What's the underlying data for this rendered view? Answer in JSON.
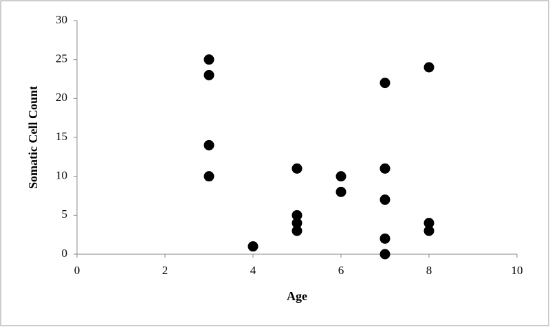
{
  "chart_data": {
    "type": "scatter",
    "color": "#000000",
    "x_label": "Age",
    "y_label": "Somatic Cell Count",
    "x": [
      3,
      3,
      3,
      3,
      4,
      5,
      5,
      5,
      5,
      6,
      6,
      7,
      7,
      7,
      7,
      7,
      8,
      8,
      8
    ],
    "values": [
      25,
      23,
      14,
      10,
      1,
      11,
      5,
      4,
      3,
      10,
      8,
      22,
      11,
      7,
      2,
      0,
      24,
      4,
      3
    ],
    "xlim": [
      0,
      10
    ],
    "xticks": [
      0,
      2,
      4,
      6,
      8,
      10
    ],
    "ylim": [
      0,
      30
    ],
    "yticks": [
      0,
      5,
      10,
      15,
      20,
      25,
      30
    ],
    "grid": false
  }
}
